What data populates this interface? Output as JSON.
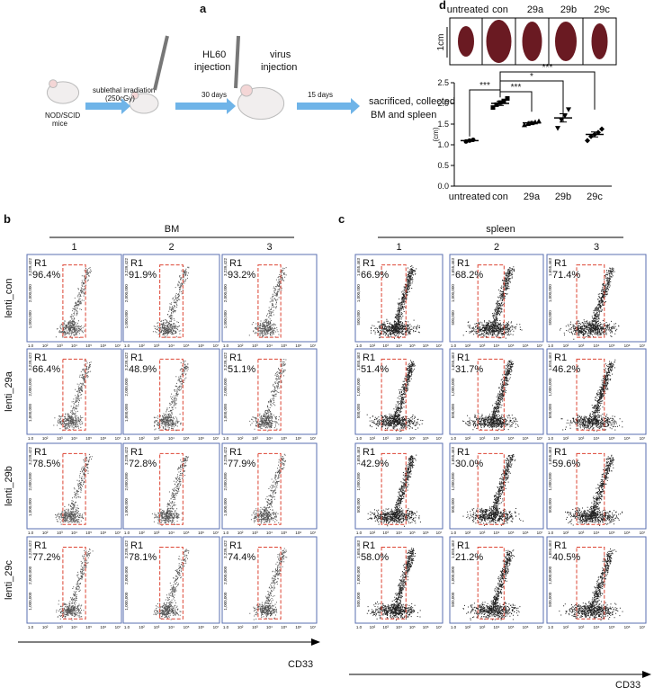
{
  "panel_a": {
    "label": "a",
    "host": [
      "NOD/SCID",
      "mice"
    ],
    "irradiation": [
      "sublethal irradiation",
      "(250cGy)"
    ],
    "hl60": [
      "HL60",
      "injection"
    ],
    "interval_1": "30 days",
    "virus": [
      "virus",
      "injection"
    ],
    "interval_2": "15 days",
    "endpoint": [
      "sacrificed, collected",
      "BM and spleen"
    ]
  },
  "panel_b": {
    "label": "b",
    "title": "BM",
    "columns": [
      "1",
      "2",
      "3"
    ],
    "gate": "R1",
    "x_axis": "CD33",
    "y_ticks": [
      "3,239,422",
      "2,000,000",
      "1,000,000"
    ],
    "x_ticks": [
      "1.0",
      "10²",
      "10³",
      "10⁴",
      "10⁵",
      "10⁶",
      "10⁷"
    ],
    "rows": [
      {
        "name": "lenti_con",
        "gates": [
          "96.4%",
          "91.9%",
          "93.2%"
        ]
      },
      {
        "name": "lenti_29a",
        "gates": [
          "66.4%",
          "48.9%",
          "51.1%"
        ]
      },
      {
        "name": "lenti_29b",
        "gates": [
          "78.5%",
          "72.8%",
          "77.9%"
        ]
      },
      {
        "name": "lenti_29c",
        "gates": [
          "77.2%",
          "78.1%",
          "74.4%"
        ]
      }
    ]
  },
  "panel_c": {
    "label": "c",
    "title": "spleen",
    "columns": [
      "1",
      "2",
      "3"
    ],
    "gate": "R1",
    "x_axis": "CD33",
    "y_ticks": [
      "1,655,463",
      "1,000,000",
      "500,000"
    ],
    "x_ticks": [
      "1.0",
      "10²",
      "10³",
      "10⁴",
      "10⁵",
      "10⁶",
      "10⁷"
    ],
    "rows": [
      {
        "gates": [
          "66.9%",
          "68.2%",
          "71.4%"
        ]
      },
      {
        "gates": [
          "51.4%",
          "31.7%",
          "46.2%"
        ]
      },
      {
        "gates": [
          "42.9%",
          "30.0%",
          "59.6%"
        ]
      },
      {
        "gates": [
          "58.0%",
          "21.2%",
          "40.5%"
        ]
      }
    ]
  },
  "panel_d": {
    "label": "d",
    "scale_bar": "1cm",
    "y_label": "(cm)",
    "ylim": [
      0,
      2.5
    ],
    "yticks": [
      {
        "value": 0,
        "label": "0.0"
      },
      {
        "value": 0.5,
        "label": "0.5"
      },
      {
        "value": 1,
        "label": "1.0"
      },
      {
        "value": 1.5,
        "label": "1.5"
      },
      {
        "value": 2,
        "label": "2.0"
      },
      {
        "value": 2.5,
        "label": "2.5"
      }
    ],
    "groups": [
      {
        "name": "untreated",
        "points": [
          1.08,
          1.1,
          1.12
        ],
        "mean": 1.1,
        "sem": 0.02
      },
      {
        "name": "con",
        "points": [
          1.9,
          1.97,
          2.02,
          2.06,
          2.12
        ],
        "mean": 2.0,
        "sem": 0.05
      },
      {
        "name": "29a",
        "points": [
          1.48,
          1.51,
          1.53,
          1.55,
          1.57
        ],
        "mean": 1.53,
        "sem": 0.03
      },
      {
        "name": "29b",
        "points": [
          1.4,
          1.6,
          1.7,
          1.85
        ],
        "mean": 1.65,
        "sem": 0.1
      },
      {
        "name": "29c",
        "points": [
          1.1,
          1.2,
          1.25,
          1.3,
          1.38
        ],
        "mean": 1.25,
        "sem": 0.06
      }
    ],
    "significance": [
      "***",
      "***",
      "*",
      "***"
    ]
  }
}
